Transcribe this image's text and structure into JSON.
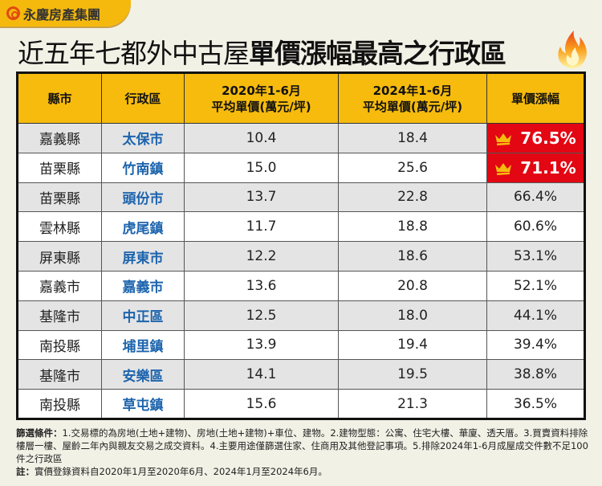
{
  "brand": "永慶房產集團",
  "title": {
    "normal": "近五年七都外中古屋",
    "bold": "單價漲幅最高之行政區"
  },
  "colors": {
    "header": "#f6bb0c",
    "top_rate": "#e30613",
    "district": "#1d64ad"
  },
  "table": {
    "headers": {
      "county": "縣市",
      "district": "行政區",
      "p2020_l1": "2020年1-6月",
      "p2020_l2": "平均單價(萬元/坪)",
      "p2024_l1": "2024年1-6月",
      "p2024_l2": "平均單價(萬元/坪)",
      "rate": "單價漲幅"
    },
    "rows": [
      {
        "county": "嘉義縣",
        "district": "太保市",
        "p2020": "10.4",
        "p2024": "18.4",
        "rate": "76.5%",
        "crown": true
      },
      {
        "county": "苗栗縣",
        "district": "竹南鎮",
        "p2020": "15.0",
        "p2024": "25.6",
        "rate": "71.1%",
        "crown": true
      },
      {
        "county": "苗栗縣",
        "district": "頭份市",
        "p2020": "13.7",
        "p2024": "22.8",
        "rate": "66.4%"
      },
      {
        "county": "雲林縣",
        "district": "虎尾鎮",
        "p2020": "11.7",
        "p2024": "18.8",
        "rate": "60.6%"
      },
      {
        "county": "屏東縣",
        "district": "屏東市",
        "p2020": "12.2",
        "p2024": "18.6",
        "rate": "53.1%"
      },
      {
        "county": "嘉義市",
        "district": "嘉義市",
        "p2020": "13.6",
        "p2024": "20.8",
        "rate": "52.1%"
      },
      {
        "county": "基隆市",
        "district": "中正區",
        "p2020": "12.5",
        "p2024": "18.0",
        "rate": "44.1%"
      },
      {
        "county": "南投縣",
        "district": "埔里鎮",
        "p2020": "13.9",
        "p2024": "19.4",
        "rate": "39.4%"
      },
      {
        "county": "基隆市",
        "district": "安樂區",
        "p2020": "14.1",
        "p2024": "19.5",
        "rate": "38.8%"
      },
      {
        "county": "南投縣",
        "district": "草屯鎮",
        "p2020": "15.6",
        "p2024": "21.3",
        "rate": "36.5%"
      }
    ]
  },
  "notes": {
    "filter_label": "篩選條件：",
    "filter_text": "1.交易標的為房地(土地+建物)、房地(土地+建物)+車位、建物。2.建物型態：公寓、住宅大樓、華廈、透天厝。3.買賣資料排除樓層一樓、屋齡二年內與親友交易之成交資料。4.主要用途僅篩選住家、住商用及其他登記事項。5.排除2024年1-6月成屋成交件數不足100件之行政區",
    "note_label": "註：",
    "note_text": "實價登錄資料自2020年1月至2020年6月、2024年1月至2024年6月。"
  }
}
